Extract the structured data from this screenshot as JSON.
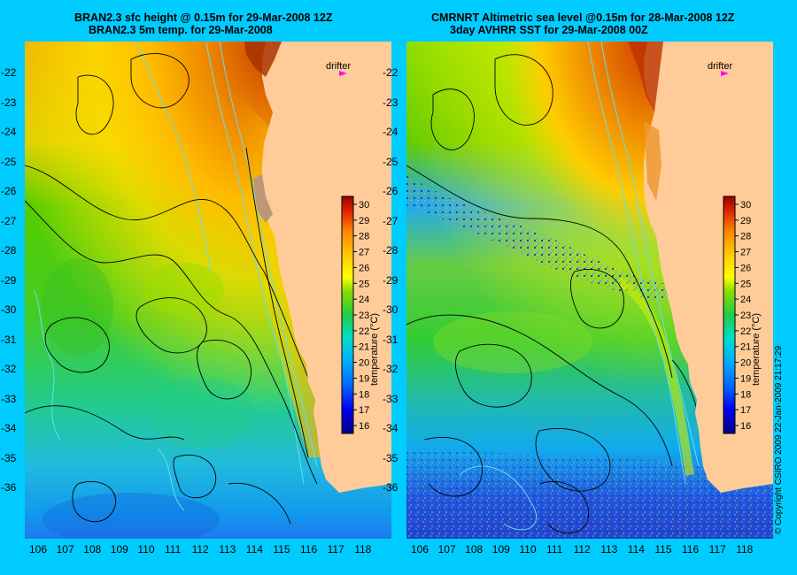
{
  "left_panel": {
    "title_line1": "BRAN2.3 sfc height @ 0.15m for 29-Mar-2008 12Z",
    "title_line2": "BRAN2.3 5m temp. for 29-Mar-2008",
    "drifter_label": "drifter"
  },
  "right_panel": {
    "title_line1": "CMRNRT Altimetric sea level  @0.15m  for 28-Mar-2008 12Z",
    "title_line2": "3day AVHRR SST for 29-Mar-2008 00Z",
    "drifter_label": "drifter"
  },
  "latitude_ticks": [
    "-22",
    "-23",
    "-24",
    "-25",
    "-26",
    "-27",
    "-28",
    "-29",
    "-30",
    "-31",
    "-32",
    "-33",
    "-34",
    "-35",
    "-36"
  ],
  "longitude_ticks": [
    "106",
    "107",
    "108",
    "109",
    "110",
    "111",
    "112",
    "113",
    "114",
    "115",
    "116",
    "117",
    "118"
  ],
  "colorbar": {
    "title": "temperature (°C)",
    "ticks": [
      "30",
      "29",
      "28",
      "27",
      "26",
      "25",
      "24",
      "23",
      "22",
      "21",
      "20",
      "19",
      "18",
      "17",
      "16"
    ],
    "range": [
      15.5,
      30.5
    ]
  },
  "copyright": "© Copyright CSIRO 2009   22-Jan-2009 21:17:29",
  "colors": {
    "background": "#00ccff",
    "land": "#ffcc99",
    "drifter_marker": "#ff00ff",
    "contour": "#000000",
    "bathymetry": "#66ddee"
  }
}
